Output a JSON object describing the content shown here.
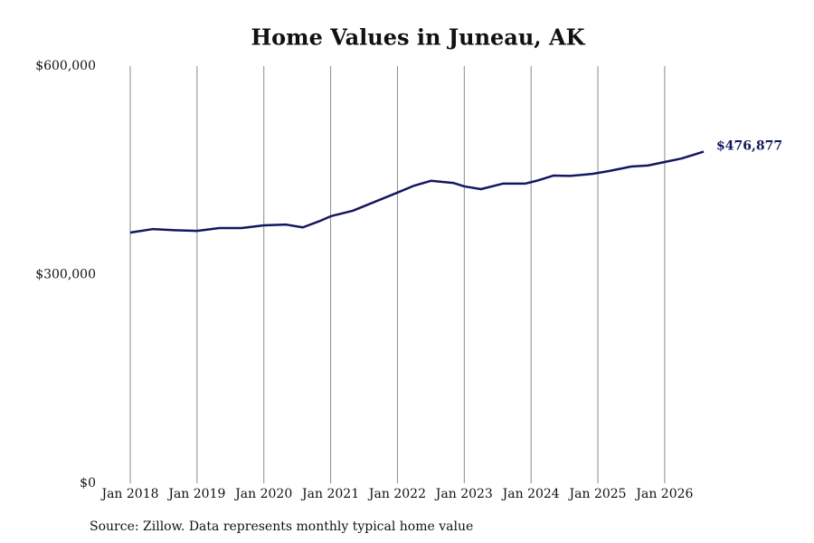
{
  "chart_data": {
    "type": "line",
    "title": "Home Values in Juneau, AK",
    "source": "Source: Zillow. Data represents monthly typical home value",
    "x": [
      "2018-01",
      "2018-05",
      "2018-09",
      "2019-01",
      "2019-05",
      "2019-09",
      "2020-01",
      "2020-05",
      "2020-08",
      "2020-11",
      "2021-01",
      "2021-05",
      "2021-09",
      "2022-01",
      "2022-04",
      "2022-07",
      "2022-11",
      "2023-01",
      "2023-04",
      "2023-08",
      "2023-12",
      "2024-02",
      "2024-05",
      "2024-08",
      "2024-12",
      "2025-03",
      "2025-07",
      "2025-10",
      "2026-01",
      "2026-04",
      "2026-08"
    ],
    "series": [
      {
        "color": "#141760",
        "values": [
          360500,
          365500,
          364000,
          363000,
          367000,
          367000,
          371000,
          372000,
          368000,
          377000,
          384000,
          392000,
          405000,
          418000,
          428000,
          435000,
          432000,
          427000,
          423000,
          431000,
          431000,
          435000,
          442500,
          442000,
          445000,
          449000,
          455500,
          457000,
          462000,
          467000,
          476877
        ],
        "value_labels": [
          null,
          null,
          null,
          null,
          null,
          null,
          null,
          null,
          null,
          null,
          null,
          null,
          null,
          null,
          null,
          null,
          null,
          null,
          null,
          null,
          null,
          null,
          null,
          null,
          null,
          null,
          null,
          null,
          null,
          null,
          "$476,877"
        ]
      }
    ],
    "xlim": [
      "2018-01",
      "2026-08"
    ],
    "xticks": [
      {
        "value": "2018-01",
        "label": "Jan 2018"
      },
      {
        "value": "2019-01",
        "label": "Jan 2019"
      },
      {
        "value": "2020-01",
        "label": "Jan 2020"
      },
      {
        "value": "2021-01",
        "label": "Jan 2021"
      },
      {
        "value": "2022-01",
        "label": "Jan 2022"
      },
      {
        "value": "2023-01",
        "label": "Jan 2023"
      },
      {
        "value": "2024-01",
        "label": "Jan 2024"
      },
      {
        "value": "2025-01",
        "label": "Jan 2025"
      },
      {
        "value": "2026-01",
        "label": "Jan 2026"
      }
    ],
    "ylim": [
      0,
      600000
    ],
    "yticks": [
      {
        "value": 0,
        "label": "$0"
      },
      {
        "value": 300000,
        "label": "$300,000"
      },
      {
        "value": 600000,
        "label": "$600,000"
      }
    ],
    "grid": "x"
  }
}
